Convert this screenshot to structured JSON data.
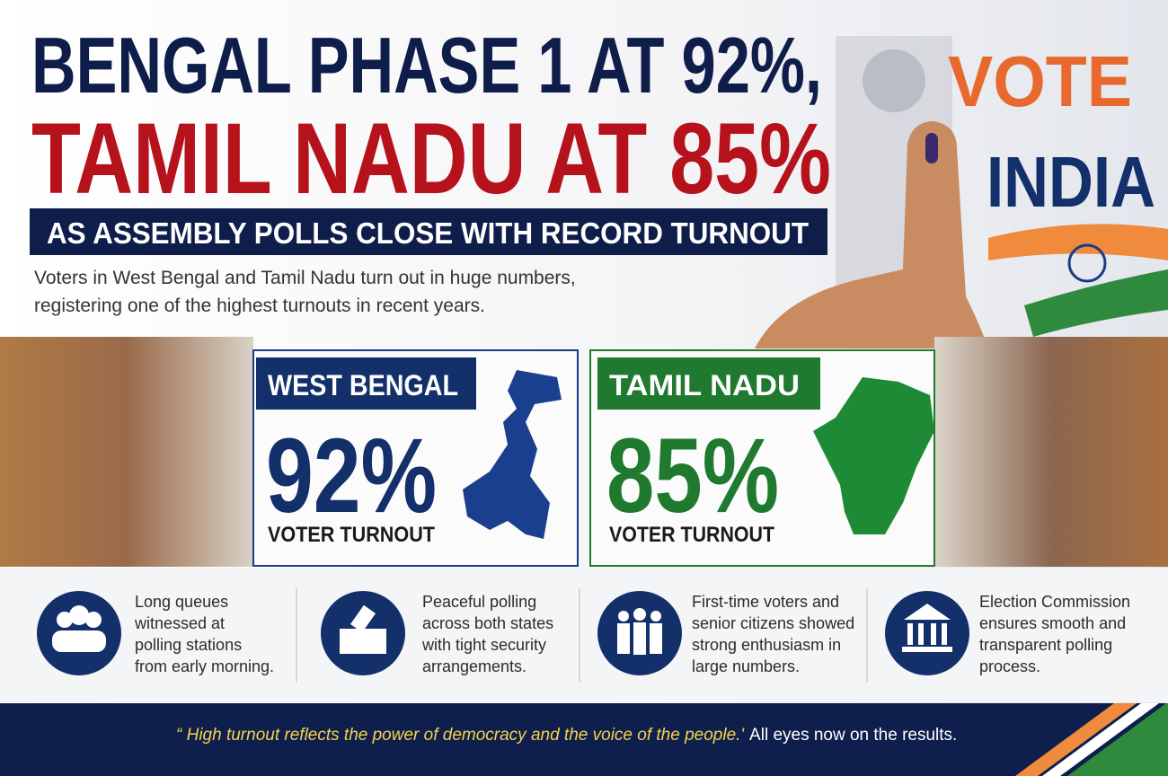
{
  "header": {
    "title_line1": "BENGAL PHASE 1 AT 92%,",
    "title_line2": "TAMIL NADU AT 85%",
    "subtitle": "AS ASSEMBLY POLLS CLOSE WITH RECORD TURNOUT",
    "intro": [
      "Voters in West Bengal and Tamil Nadu turn out in huge numbers,",
      "registering one of the highest turnouts in recent years."
    ]
  },
  "illustration": {
    "word1": "VOTE",
    "word2": "INDIA"
  },
  "states": [
    {
      "name": "WEST BENGAL",
      "turnout": "92%",
      "label": "VOTER TURNOUT"
    },
    {
      "name": "TAMIL NADU",
      "turnout": "85%",
      "label": "VOTER TURNOUT"
    }
  ],
  "highlights": [
    {
      "lines": [
        "Long queues",
        "witnessed at",
        "polling stations",
        "from early morning."
      ]
    },
    {
      "lines": [
        "Peaceful polling",
        "across both states",
        "with tight security",
        "arrangements."
      ]
    },
    {
      "lines": [
        "First-time voters and",
        "senior citizens showed",
        "strong enthusiasm in",
        "large numbers."
      ]
    },
    {
      "lines": [
        "Election Commission",
        "ensures smooth and",
        "transparent polling",
        "process."
      ]
    }
  ],
  "footer": {
    "quote": "“ High turnout reflects the power of democracy and the voice of the people.'",
    "note": "All eyes now on the results."
  }
}
